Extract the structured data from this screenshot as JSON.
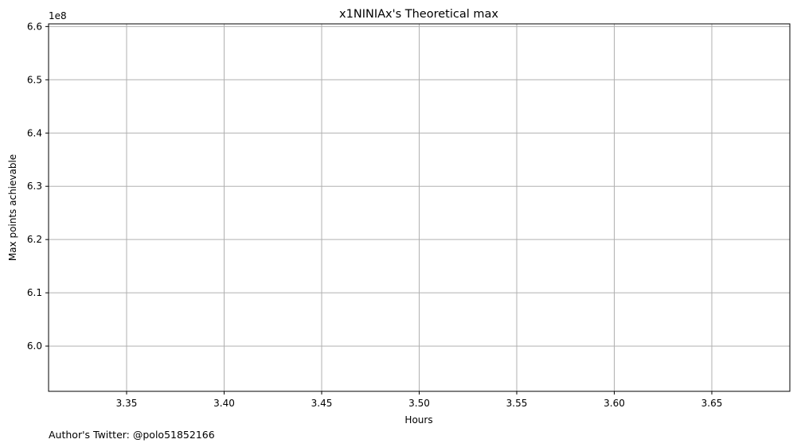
{
  "chart_data": {
    "type": "line",
    "title": "x1NINIAx's Theoretical max",
    "xlabel": "Hours",
    "ylabel": "Max points achievable",
    "y_offset_label": "1e8",
    "y_scale_factor": 100000000,
    "xlim": [
      3.31,
      3.69
    ],
    "ylim": [
      591500000,
      660500000
    ],
    "x_ticks": [
      3.35,
      3.4,
      3.45,
      3.5,
      3.55,
      3.6,
      3.65
    ],
    "x_tick_labels": [
      "3.35",
      "3.40",
      "3.45",
      "3.50",
      "3.55",
      "3.60",
      "3.65"
    ],
    "y_ticks": [
      600000000,
      610000000,
      620000000,
      630000000,
      640000000,
      650000000,
      660000000
    ],
    "y_tick_labels": [
      "6.0",
      "6.1",
      "6.2",
      "6.3",
      "6.4",
      "6.5",
      "6.6"
    ],
    "grid": true,
    "series": []
  },
  "footnote": "Author's Twitter: @polo51852166",
  "colors": {
    "grid": "#b0b0b0",
    "axes": "#000000",
    "background": "#ffffff"
  }
}
